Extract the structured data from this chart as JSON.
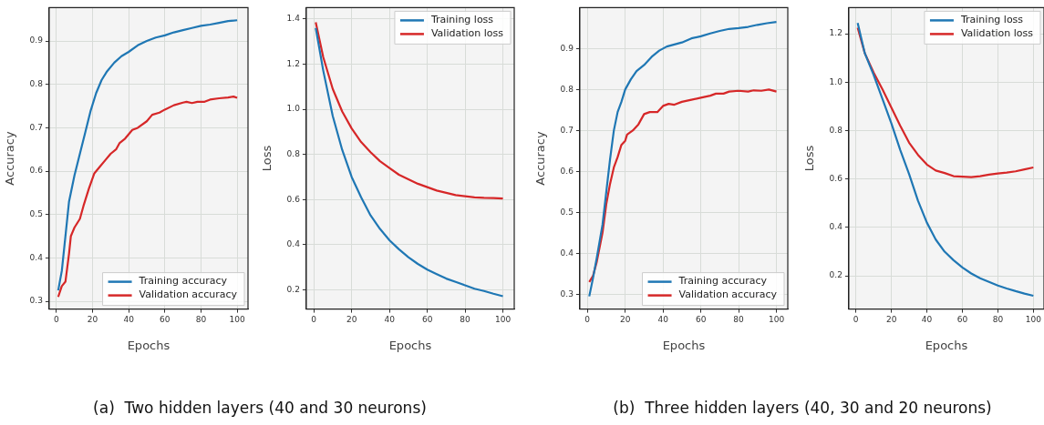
{
  "chart_data": [
    {
      "type": "line",
      "xlabel": "Epochs",
      "ylabel": "Accuracy",
      "xlim": [
        -4,
        106
      ],
      "xticks": [
        0,
        20,
        40,
        60,
        80,
        100
      ],
      "ylim": [
        0.282,
        0.977
      ],
      "yticks": [
        0.3,
        0.4,
        0.5,
        0.6,
        0.7,
        0.8,
        0.9
      ],
      "grid": true,
      "legend": "bottom right",
      "marker": "none",
      "annotations": [
        "(a)  Two hidden layers (40 and 30 neurons)"
      ],
      "series": [
        {
          "name": "Training accuracy",
          "color": "#1f77b4",
          "x": [
            1,
            3,
            5,
            7,
            10,
            13,
            16,
            19,
            22,
            25,
            28,
            32,
            36,
            40,
            45,
            50,
            55,
            60,
            65,
            70,
            75,
            80,
            85,
            90,
            95,
            100
          ],
          "values": [
            0.325,
            0.37,
            0.45,
            0.53,
            0.59,
            0.64,
            0.69,
            0.74,
            0.78,
            0.81,
            0.83,
            0.85,
            0.865,
            0.875,
            0.89,
            0.9,
            0.908,
            0.913,
            0.92,
            0.925,
            0.93,
            0.935,
            0.938,
            0.942,
            0.946,
            0.948
          ]
        },
        {
          "name": "Validation accuracy",
          "color": "#d62728",
          "x": [
            1,
            3,
            5,
            7,
            8,
            10,
            13,
            15,
            18,
            21,
            24,
            27,
            30,
            33,
            35,
            38,
            42,
            45,
            50,
            53,
            57,
            60,
            65,
            70,
            72,
            75,
            78,
            82,
            85,
            90,
            95,
            98,
            100
          ],
          "values": [
            0.31,
            0.335,
            0.345,
            0.41,
            0.45,
            0.47,
            0.49,
            0.52,
            0.56,
            0.595,
            0.61,
            0.625,
            0.64,
            0.65,
            0.665,
            0.675,
            0.695,
            0.7,
            0.715,
            0.73,
            0.735,
            0.742,
            0.752,
            0.758,
            0.76,
            0.757,
            0.76,
            0.76,
            0.765,
            0.768,
            0.77,
            0.772,
            0.769
          ]
        }
      ]
    },
    {
      "type": "line",
      "xlabel": "Epochs",
      "ylabel": "Loss",
      "xlim": [
        -4,
        106
      ],
      "xticks": [
        0,
        20,
        40,
        60,
        80,
        100
      ],
      "ylim": [
        0.115,
        1.45
      ],
      "yticks": [
        0.2,
        0.4,
        0.6,
        0.8,
        {
          "value": 1,
          "label": "1.0"
        },
        1.2,
        1.4
      ],
      "grid": true,
      "legend": "top right",
      "marker": "none",
      "series": [
        {
          "name": "Training loss",
          "color": "#1f77b4",
          "x": [
            1,
            5,
            10,
            15,
            20,
            25,
            30,
            35,
            40,
            45,
            50,
            55,
            60,
            65,
            70,
            75,
            80,
            85,
            90,
            95,
            100
          ],
          "values": [
            1.36,
            1.17,
            0.97,
            0.82,
            0.7,
            0.61,
            0.53,
            0.47,
            0.42,
            0.38,
            0.345,
            0.315,
            0.29,
            0.27,
            0.25,
            0.235,
            0.22,
            0.205,
            0.195,
            0.183,
            0.172
          ]
        },
        {
          "name": "Validation loss",
          "color": "#d62728",
          "x": [
            1,
            5,
            10,
            15,
            20,
            25,
            30,
            35,
            40,
            45,
            50,
            55,
            60,
            65,
            70,
            75,
            80,
            85,
            90,
            95,
            100
          ],
          "values": [
            1.385,
            1.23,
            1.09,
            0.99,
            0.915,
            0.855,
            0.81,
            0.77,
            0.74,
            0.71,
            0.69,
            0.67,
            0.655,
            0.64,
            0.63,
            0.62,
            0.615,
            0.61,
            0.608,
            0.607,
            0.605
          ]
        }
      ]
    },
    {
      "type": "line",
      "xlabel": "Epochs",
      "ylabel": "Accuracy",
      "xlim": [
        -4,
        106
      ],
      "xticks": [
        0,
        20,
        40,
        60,
        80,
        100
      ],
      "ylim": [
        0.264,
        1.0
      ],
      "yticks": [
        0.3,
        0.4,
        0.5,
        0.6,
        0.7,
        0.8,
        0.9
      ],
      "grid": true,
      "legend": "bottom right",
      "marker": "none",
      "annotations": [
        "(b)  Three hidden layers (40, 30 and 20 neurons)"
      ],
      "series": [
        {
          "name": "Training accuracy",
          "color": "#1f77b4",
          "x": [
            1,
            3,
            5,
            8,
            10,
            12,
            14,
            16,
            18,
            20,
            23,
            26,
            30,
            34,
            38,
            42,
            46,
            50,
            55,
            60,
            65,
            70,
            75,
            80,
            85,
            90,
            95,
            100
          ],
          "values": [
            0.295,
            0.34,
            0.39,
            0.47,
            0.55,
            0.63,
            0.7,
            0.745,
            0.77,
            0.8,
            0.825,
            0.845,
            0.86,
            0.88,
            0.895,
            0.905,
            0.91,
            0.915,
            0.925,
            0.93,
            0.937,
            0.943,
            0.948,
            0.95,
            0.953,
            0.958,
            0.962,
            0.965
          ]
        },
        {
          "name": "Validation accuracy",
          "color": "#d62728",
          "x": [
            1,
            3,
            5,
            8,
            10,
            12,
            14,
            16,
            18,
            20,
            21,
            24,
            27,
            30,
            33,
            37,
            40,
            43,
            46,
            50,
            55,
            60,
            65,
            68,
            72,
            75,
            80,
            85,
            88,
            92,
            96,
            100
          ],
          "values": [
            0.33,
            0.345,
            0.38,
            0.45,
            0.52,
            0.57,
            0.61,
            0.635,
            0.665,
            0.675,
            0.69,
            0.7,
            0.715,
            0.74,
            0.745,
            0.745,
            0.76,
            0.765,
            0.763,
            0.77,
            0.775,
            0.78,
            0.785,
            0.79,
            0.79,
            0.795,
            0.797,
            0.795,
            0.798,
            0.797,
            0.8,
            0.795
          ]
        }
      ]
    },
    {
      "type": "line",
      "xlabel": "Epochs",
      "ylabel": "Loss",
      "xlim": [
        -4,
        106
      ],
      "xticks": [
        0,
        20,
        40,
        60,
        80,
        100
      ],
      "ylim": [
        0.063,
        1.308
      ],
      "yticks": [
        0.2,
        0.4,
        0.6,
        0.8,
        {
          "value": 1,
          "label": "1.0"
        },
        1.2
      ],
      "grid": true,
      "legend": "top right",
      "marker": "none",
      "series": [
        {
          "name": "Training loss",
          "color": "#1f77b4",
          "x": [
            1,
            5,
            10,
            15,
            20,
            25,
            30,
            35,
            40,
            45,
            50,
            55,
            60,
            65,
            70,
            75,
            80,
            85,
            90,
            95,
            100
          ],
          "values": [
            1.245,
            1.12,
            1.03,
            0.93,
            0.83,
            0.72,
            0.62,
            0.51,
            0.42,
            0.35,
            0.3,
            0.265,
            0.235,
            0.21,
            0.19,
            0.175,
            0.16,
            0.148,
            0.137,
            0.127,
            0.118
          ]
        },
        {
          "name": "Validation loss",
          "color": "#d62728",
          "x": [
            1,
            5,
            10,
            15,
            20,
            25,
            30,
            35,
            40,
            45,
            50,
            55,
            60,
            65,
            70,
            75,
            80,
            85,
            90,
            95,
            100
          ],
          "values": [
            1.225,
            1.12,
            1.04,
            0.97,
            0.895,
            0.82,
            0.75,
            0.7,
            0.66,
            0.635,
            0.625,
            0.612,
            0.61,
            0.608,
            0.612,
            0.618,
            0.623,
            0.627,
            0.632,
            0.64,
            0.648
          ]
        }
      ]
    }
  ]
}
